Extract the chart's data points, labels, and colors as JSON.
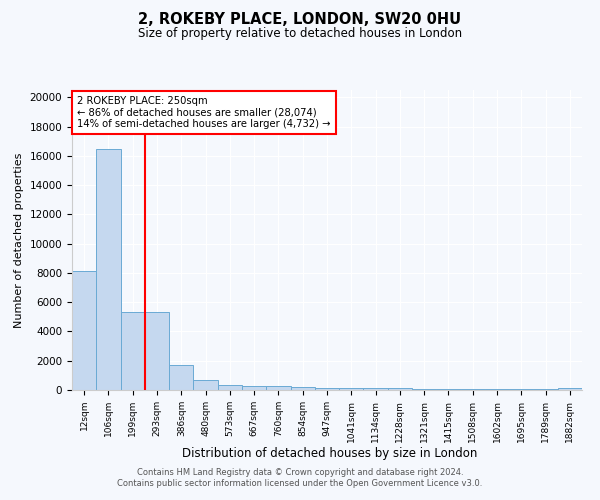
{
  "title_line1": "2, ROKEBY PLACE, LONDON, SW20 0HU",
  "title_line2": "Size of property relative to detached houses in London",
  "xlabel": "Distribution of detached houses by size in London",
  "ylabel": "Number of detached properties",
  "categories": [
    "12sqm",
    "106sqm",
    "199sqm",
    "293sqm",
    "386sqm",
    "480sqm",
    "573sqm",
    "667sqm",
    "760sqm",
    "854sqm",
    "947sqm",
    "1041sqm",
    "1134sqm",
    "1228sqm",
    "1321sqm",
    "1415sqm",
    "1508sqm",
    "1602sqm",
    "1695sqm",
    "1789sqm",
    "1882sqm"
  ],
  "values": [
    8100,
    16500,
    5300,
    5300,
    1700,
    700,
    350,
    300,
    250,
    200,
    150,
    130,
    120,
    110,
    100,
    90,
    80,
    75,
    70,
    65,
    150
  ],
  "bar_color": "#c5d8ef",
  "bar_edge_color": "#6aaad4",
  "red_line_x": 2.5,
  "annotation_text": "2 ROKEBY PLACE: 250sqm\n← 86% of detached houses are smaller (28,074)\n14% of semi-detached houses are larger (4,732) →",
  "annotation_box_color": "white",
  "annotation_box_edge_color": "red",
  "red_line_color": "red",
  "ylim": [
    0,
    20500
  ],
  "yticks": [
    0,
    2000,
    4000,
    6000,
    8000,
    10000,
    12000,
    14000,
    16000,
    18000,
    20000
  ],
  "ytick_labels": [
    "0",
    "2000",
    "4000",
    "6000",
    "8000",
    "10000",
    "12000",
    "14000",
    "16000",
    "18000",
    "20000"
  ],
  "footer_line1": "Contains HM Land Registry data © Crown copyright and database right 2024.",
  "footer_line2": "Contains public sector information licensed under the Open Government Licence v3.0.",
  "bg_color": "#f5f8fd",
  "plot_bg_color": "#f5f8fd",
  "grid_color": "#ffffff"
}
